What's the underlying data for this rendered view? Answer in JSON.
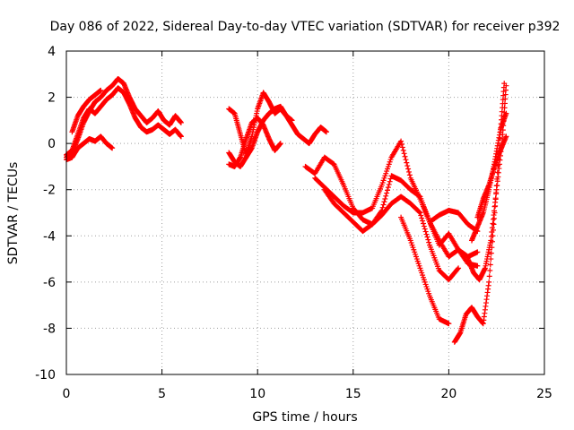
{
  "chart_data": {
    "type": "scatter",
    "title": "Day 086 of 2022, Sidereal Day-to-day VTEC variation (SDTVAR) for receiver p392",
    "xlabel": "GPS time / hours",
    "ylabel": "SDTVAR / TECUs",
    "xlim": [
      0,
      25
    ],
    "ylim": [
      -10,
      4
    ],
    "xticks": [
      0,
      5,
      10,
      15,
      20,
      25
    ],
    "yticks": [
      -10,
      -8,
      -6,
      -4,
      -2,
      0,
      2,
      4
    ],
    "grid": true,
    "marker": "plus",
    "color": "#ff0000",
    "series": [
      {
        "x": [
          0.0,
          0.3,
          0.6,
          0.9,
          1.2,
          1.5,
          1.8,
          2.1,
          2.4,
          2.7,
          3.0,
          3.3,
          3.6,
          3.9,
          4.2,
          4.5,
          4.8,
          5.1,
          5.4,
          5.7,
          6.0
        ],
        "y": [
          -0.6,
          -0.4,
          0.2,
          0.9,
          1.4,
          1.8,
          2.0,
          2.3,
          2.5,
          2.8,
          2.6,
          2.0,
          1.5,
          1.2,
          0.9,
          1.1,
          1.4,
          1.0,
          0.8,
          1.2,
          0.9
        ]
      },
      {
        "x": [
          0.0,
          0.3,
          0.6,
          0.9,
          1.2,
          1.5,
          1.8,
          2.1,
          2.4,
          2.7,
          3.0,
          3.3,
          3.6,
          3.9,
          4.2,
          4.5,
          4.8,
          5.1,
          5.4,
          5.7,
          6.0
        ],
        "y": [
          -0.5,
          -0.3,
          0.4,
          1.1,
          1.5,
          1.3,
          1.6,
          1.9,
          2.1,
          2.4,
          2.2,
          1.7,
          1.1,
          0.7,
          0.5,
          0.6,
          0.8,
          0.6,
          0.4,
          0.6,
          0.3
        ]
      },
      {
        "x": [
          0.0,
          0.3,
          0.6,
          0.9,
          1.2,
          1.5,
          1.8,
          2.1,
          2.4
        ],
        "y": [
          -0.7,
          -0.6,
          -0.2,
          0.0,
          0.2,
          0.1,
          0.3,
          0.0,
          -0.2
        ]
      },
      {
        "x": [
          0.3,
          0.6,
          0.9,
          1.2,
          1.5,
          1.8
        ],
        "y": [
          0.5,
          1.2,
          1.6,
          1.9,
          2.1,
          2.3
        ]
      },
      {
        "x": [
          8.5,
          8.8,
          9.1,
          9.4,
          9.7,
          10.0,
          10.3,
          10.6,
          10.9,
          11.2,
          11.5,
          11.8,
          12.1,
          12.4,
          12.7,
          13.0,
          13.3,
          13.6
        ],
        "y": [
          1.5,
          1.3,
          0.4,
          -0.5,
          0.3,
          1.5,
          2.2,
          1.8,
          1.3,
          1.5,
          1.2,
          0.8,
          0.4,
          0.2,
          0.0,
          0.4,
          0.7,
          0.5
        ]
      },
      {
        "x": [
          8.5,
          8.8,
          9.1,
          9.4,
          9.7,
          10.0,
          10.3,
          10.6,
          10.9,
          11.2,
          11.5,
          11.8
        ],
        "y": [
          -0.4,
          -0.8,
          -1.0,
          -0.6,
          -0.2,
          0.5,
          1.0,
          1.3,
          1.5,
          1.6,
          1.2,
          1.0
        ]
      },
      {
        "x": [
          8.5,
          8.8,
          9.1,
          9.4,
          9.7,
          10.0,
          10.3,
          10.6,
          10.9,
          11.2
        ],
        "y": [
          -0.9,
          -1.0,
          -0.6,
          0.2,
          0.9,
          1.1,
          0.8,
          0.2,
          -0.3,
          0.0
        ]
      },
      {
        "x": [
          12.5,
          13.0,
          13.5,
          14.0,
          14.5,
          15.0,
          15.5,
          16.0,
          16.5,
          17.0,
          17.5,
          18.0,
          18.5,
          19.0,
          19.5,
          20.0,
          20.5,
          21.0,
          21.5
        ],
        "y": [
          -1.0,
          -1.3,
          -0.6,
          -0.9,
          -1.8,
          -2.8,
          -3.3,
          -3.5,
          -2.9,
          -1.4,
          -1.6,
          -2.0,
          -2.3,
          -3.4,
          -4.4,
          -3.9,
          -4.6,
          -4.9,
          -4.7
        ]
      },
      {
        "x": [
          13.0,
          13.5,
          14.0,
          14.5,
          15.0,
          15.5,
          16.0,
          16.5,
          17.0,
          17.5,
          18.0,
          18.5,
          19.0,
          19.5,
          20.0,
          20.5,
          21.0,
          21.5
        ],
        "y": [
          -1.5,
          -1.9,
          -2.3,
          -2.7,
          -3.0,
          -3.0,
          -2.8,
          -1.8,
          -0.6,
          0.1,
          -1.5,
          -2.4,
          -3.4,
          -4.2,
          -4.9,
          -4.6,
          -5.2,
          -5.3
        ]
      },
      {
        "x": [
          13.5,
          14.0,
          14.5,
          15.0,
          15.5,
          16.0,
          16.5,
          17.0,
          17.5,
          18.0,
          18.5,
          19.0,
          19.5,
          20.0,
          20.5
        ],
        "y": [
          -2.0,
          -2.6,
          -3.0,
          -3.4,
          -3.8,
          -3.5,
          -3.1,
          -2.6,
          -2.3,
          -2.6,
          -3.0,
          -4.4,
          -5.5,
          -5.9,
          -5.4
        ]
      },
      {
        "x": [
          17.5,
          18.0,
          18.5,
          19.0,
          19.5,
          20.0
        ],
        "y": [
          -3.2,
          -4.2,
          -5.4,
          -6.6,
          -7.6,
          -7.8
        ]
      },
      {
        "x": [
          19.0,
          19.5,
          20.0,
          20.5,
          21.0,
          21.5
        ],
        "y": [
          -3.4,
          -3.1,
          -2.9,
          -3.0,
          -3.5,
          -3.8
        ]
      },
      {
        "x": [
          20.3,
          20.6,
          20.9,
          21.2,
          21.5,
          21.8,
          22.1,
          22.4,
          22.7,
          22.9
        ],
        "y": [
          -8.6,
          -8.2,
          -7.4,
          -7.1,
          -7.5,
          -7.8,
          -6.0,
          -3.0,
          0.5,
          2.6
        ]
      },
      {
        "x": [
          21.0,
          21.3,
          21.6,
          21.9,
          22.2,
          22.5,
          22.8,
          23.0
        ],
        "y": [
          -5.0,
          -5.6,
          -5.9,
          -5.4,
          -4.2,
          -2.0,
          0.2,
          2.5
        ]
      },
      {
        "x": [
          21.2,
          21.5,
          21.8,
          22.1,
          22.4,
          22.7,
          23.0
        ],
        "y": [
          -4.2,
          -3.6,
          -3.0,
          -2.0,
          -0.8,
          0.6,
          1.3
        ]
      },
      {
        "x": [
          21.5,
          21.8,
          22.1,
          22.4,
          22.7,
          23.0
        ],
        "y": [
          -3.2,
          -2.4,
          -1.8,
          -1.0,
          -0.3,
          0.3
        ]
      }
    ]
  }
}
